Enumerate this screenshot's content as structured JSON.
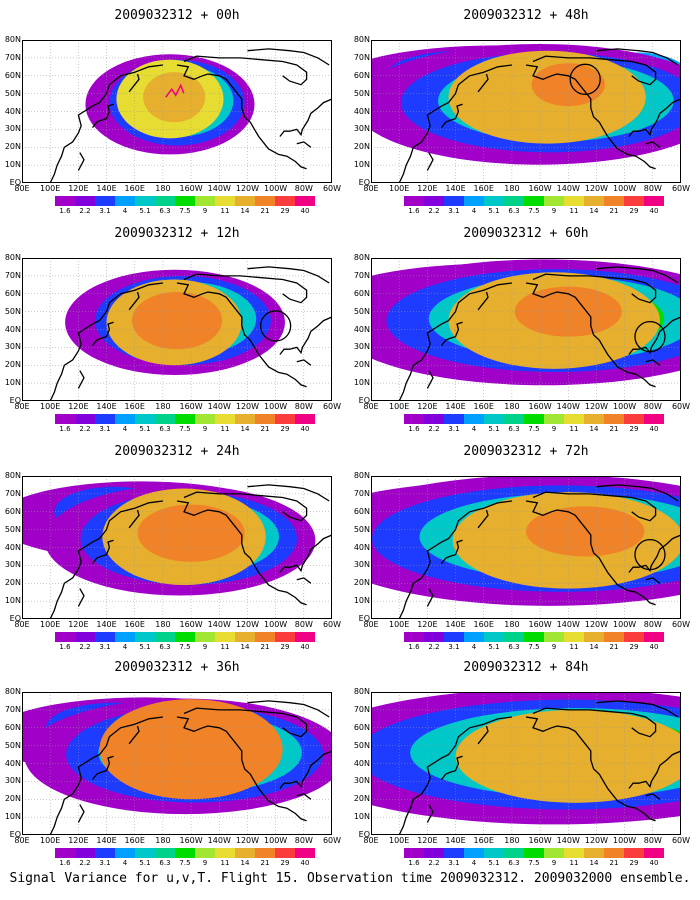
{
  "chart_data": {
    "type": "heatmap",
    "caption": "Signal Variance for u,v,T. Flight 15. Observation time 2009032312. 2009032000 ensemble.",
    "lat_labels": [
      "EQ",
      "10N",
      "20N",
      "30N",
      "40N",
      "50N",
      "60N",
      "70N",
      "80N"
    ],
    "lon_labels": [
      "80E",
      "100E",
      "120E",
      "140E",
      "160E",
      "180",
      "160W",
      "140W",
      "120W",
      "100W",
      "80W",
      "60W"
    ],
    "colorbar": {
      "levels": [
        "1.6",
        "2.2",
        "3.1",
        "4",
        "5.1",
        "6.3",
        "7.5",
        "9",
        "11",
        "14",
        "21",
        "29",
        "40"
      ],
      "colors": [
        "#a000c8",
        "#8200dc",
        "#1e3cff",
        "#00a0ff",
        "#00c8c8",
        "#00d28c",
        "#00dc00",
        "#a0e632",
        "#e6dc32",
        "#e6af2d",
        "#f08228",
        "#fa3c3c",
        "#f00082"
      ]
    },
    "panels": [
      {
        "title": "2009032312 + 00h",
        "lead_hours": 0,
        "blobs": [
          {
            "lon": -175,
            "lat": 47,
            "rx": 38,
            "ry": 22,
            "level": 8
          },
          {
            "lon": -172,
            "lat": 48,
            "rx": 22,
            "ry": 14,
            "level": 9
          }
        ],
        "circle": null
      },
      {
        "title": "2009032312 + 12h",
        "lead_hours": 12,
        "blobs": [
          {
            "lon": -172,
            "lat": 44,
            "rx": 48,
            "ry": 24,
            "level": 9
          },
          {
            "lon": -170,
            "lat": 45,
            "rx": 32,
            "ry": 16,
            "level": 10
          }
        ],
        "circle": {
          "lon": -100,
          "lat": 42
        }
      },
      {
        "title": "2009032312 + 24h",
        "lead_hours": 24,
        "blobs": [
          {
            "lon": -165,
            "lat": 46,
            "rx": 58,
            "ry": 27,
            "level": 9
          },
          {
            "lon": -160,
            "lat": 48,
            "rx": 38,
            "ry": 16,
            "level": 10
          }
        ],
        "circle": null
      },
      {
        "title": "2009032312 + 36h",
        "lead_hours": 36,
        "blobs": [
          {
            "lon": -160,
            "lat": 48,
            "rx": 65,
            "ry": 28,
            "level": 10
          },
          {
            "lon": -155,
            "lat": 52,
            "rx": 38,
            "ry": 15,
            "level": 10
          }
        ],
        "circle": null
      },
      {
        "title": "2009032312 + 48h",
        "lead_hours": 48,
        "blobs": [
          {
            "lon": -155,
            "lat": 48,
            "rx": 70,
            "ry": 26,
            "level": 9
          },
          {
            "lon": -140,
            "lat": 55,
            "rx": 26,
            "ry": 12,
            "level": 10
          }
        ],
        "circle": {
          "lon": -128,
          "lat": 58
        }
      },
      {
        "title": "2009032312 + 60h",
        "lead_hours": 60,
        "blobs": [
          {
            "lon": -150,
            "lat": 45,
            "rx": 75,
            "ry": 27,
            "level": 9
          },
          {
            "lon": -140,
            "lat": 50,
            "rx": 38,
            "ry": 14,
            "level": 10
          }
        ],
        "circle": {
          "lon": -82,
          "lat": 36
        }
      },
      {
        "title": "2009032312 + 72h",
        "lead_hours": 72,
        "blobs": [
          {
            "lon": -140,
            "lat": 44,
            "rx": 82,
            "ry": 27,
            "level": 9
          },
          {
            "lon": -128,
            "lat": 49,
            "rx": 42,
            "ry": 14,
            "level": 10
          }
        ],
        "circle": {
          "lon": -82,
          "lat": 36
        }
      },
      {
        "title": "2009032312 + 84h",
        "lead_hours": 84,
        "blobs": [
          {
            "lon": -135,
            "lat": 44,
            "rx": 85,
            "ry": 26,
            "level": 9
          },
          {
            "lon": -120,
            "lat": 48,
            "rx": 40,
            "ry": 12,
            "level": 9
          }
        ],
        "circle": null
      }
    ]
  }
}
